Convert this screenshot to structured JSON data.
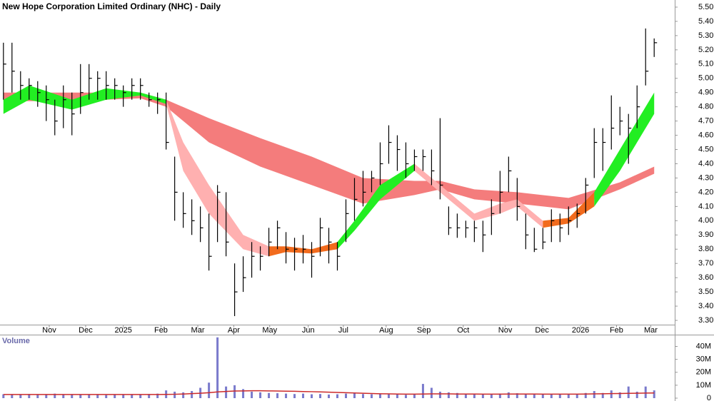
{
  "chart_data": [
    {
      "type": "hlc",
      "title": "New Hope Corporation Limited Ordinary (NHC) - Daily",
      "color": "#000000",
      "xlim": [
        -0.4,
        78.4
      ],
      "xticks": [
        {
          "value": 5.35,
          "label": "Nov"
        },
        {
          "value": 9.6,
          "label": "Dec"
        },
        {
          "value": 14.0,
          "label": "2025"
        },
        {
          "value": 18.4,
          "label": "Feb"
        },
        {
          "value": 22.7,
          "label": "Mar"
        },
        {
          "value": 26.9,
          "label": "Apr"
        },
        {
          "value": 31.1,
          "label": "May"
        },
        {
          "value": 35.6,
          "label": "Jun"
        },
        {
          "value": 39.7,
          "label": "Jul"
        },
        {
          "value": 44.7,
          "label": "Aug"
        },
        {
          "value": 49.1,
          "label": "Sep"
        },
        {
          "value": 53.7,
          "label": "Oct"
        },
        {
          "value": 58.6,
          "label": "Nov"
        },
        {
          "value": 62.9,
          "label": "Dec"
        },
        {
          "value": 67.4,
          "label": "2026"
        },
        {
          "value": 71.6,
          "label": "Feb"
        },
        {
          "value": 75.6,
          "label": "Mar"
        }
      ],
      "ylim": [
        3.27,
        5.55
      ],
      "yticks": [
        {
          "value": 3.3,
          "label": "3.30"
        },
        {
          "value": 3.4,
          "label": "3.40"
        },
        {
          "value": 3.5,
          "label": "3.50"
        },
        {
          "value": 3.6,
          "label": "3.60"
        },
        {
          "value": 3.7,
          "label": "3.70"
        },
        {
          "value": 3.8,
          "label": "3.80"
        },
        {
          "value": 3.9,
          "label": "3.90"
        },
        {
          "value": 4.0,
          "label": "4.00"
        },
        {
          "value": 4.1,
          "label": "4.10"
        },
        {
          "value": 4.2,
          "label": "4.20"
        },
        {
          "value": 4.3,
          "label": "4.30"
        },
        {
          "value": 4.4,
          "label": "4.40"
        },
        {
          "value": 4.5,
          "label": "4.50"
        },
        {
          "value": 4.6,
          "label": "4.60"
        },
        {
          "value": 4.7,
          "label": "4.70"
        },
        {
          "value": 4.8,
          "label": "4.80"
        },
        {
          "value": 4.9,
          "label": "4.90"
        },
        {
          "value": 5.0,
          "label": "5.00"
        },
        {
          "value": 5.1,
          "label": "5.10"
        },
        {
          "value": 5.2,
          "label": "5.20"
        },
        {
          "value": 5.3,
          "label": "5.30"
        },
        {
          "value": 5.4,
          "label": "5.40"
        },
        {
          "value": 5.5,
          "label": "5.50"
        }
      ],
      "high": [
        5.25,
        5.25,
        5.05,
        5.0,
        4.98,
        4.95,
        4.85,
        4.95,
        4.9,
        5.1,
        5.1,
        5.05,
        5.05,
        5.0,
        4.95,
        5.0,
        5.0,
        4.9,
        4.9,
        4.9,
        4.45,
        4.2,
        4.15,
        4.1,
        4.05,
        4.25,
        4.2,
        3.7,
        3.75,
        3.85,
        3.82,
        3.95,
        4.0,
        3.92,
        3.88,
        3.9,
        3.85,
        4.02,
        3.95,
        3.85,
        4.15,
        4.3,
        4.35,
        4.35,
        4.55,
        4.67,
        4.6,
        4.55,
        4.5,
        4.5,
        4.5,
        4.72,
        4.1,
        4.05,
        4.0,
        4.0,
        4.0,
        4.15,
        4.35,
        4.45,
        4.3,
        4.05,
        3.95,
        3.95,
        4.08,
        4.05,
        4.1,
        4.12,
        4.3,
        4.65,
        4.65,
        4.88,
        4.8,
        4.75,
        4.95,
        5.35,
        5.28
      ],
      "low": [
        4.85,
        4.9,
        4.85,
        4.85,
        4.8,
        4.7,
        4.6,
        4.65,
        4.6,
        4.75,
        4.85,
        4.85,
        4.85,
        4.85,
        4.8,
        4.85,
        4.85,
        4.8,
        4.75,
        4.5,
        4.0,
        3.95,
        3.9,
        3.85,
        3.65,
        3.85,
        3.75,
        3.33,
        3.5,
        3.6,
        3.65,
        3.75,
        3.8,
        3.7,
        3.65,
        3.7,
        3.6,
        3.75,
        3.7,
        3.65,
        3.85,
        4.0,
        4.1,
        4.2,
        4.25,
        4.4,
        4.35,
        4.3,
        4.35,
        4.35,
        4.25,
        4.15,
        3.9,
        3.88,
        3.88,
        3.85,
        3.78,
        3.9,
        4.05,
        4.2,
        4.0,
        3.8,
        3.78,
        3.8,
        3.85,
        3.85,
        3.9,
        3.95,
        4.05,
        4.3,
        4.35,
        4.5,
        4.6,
        4.4,
        4.65,
        4.95,
        5.15
      ],
      "close": [
        5.1,
        5.05,
        4.95,
        4.95,
        4.9,
        4.85,
        4.7,
        4.85,
        4.75,
        4.9,
        5.0,
        5.0,
        4.95,
        4.95,
        4.9,
        4.95,
        4.95,
        4.85,
        4.85,
        4.55,
        4.2,
        4.05,
        4.0,
        3.95,
        3.75,
        4.2,
        3.85,
        3.5,
        3.6,
        3.75,
        3.75,
        3.85,
        3.95,
        3.8,
        3.8,
        3.8,
        3.75,
        3.95,
        3.85,
        3.75,
        4.05,
        4.15,
        4.2,
        4.3,
        4.4,
        4.55,
        4.5,
        4.4,
        4.45,
        4.45,
        4.35,
        4.25,
        3.95,
        3.95,
        3.95,
        3.95,
        3.9,
        4.05,
        4.2,
        4.35,
        4.1,
        3.9,
        3.8,
        3.85,
        4.0,
        3.95,
        4.0,
        4.05,
        4.25,
        4.55,
        4.55,
        4.65,
        4.7,
        4.65,
        4.8,
        5.05,
        5.25
      ],
      "bands": [
        {
          "color": "#f47c7c",
          "x": [
            0,
            8,
            16,
            19,
            24,
            30,
            36,
            42,
            48,
            51,
            55,
            60,
            66,
            72,
            76
          ],
          "upper": [
            4.9,
            4.9,
            4.9,
            4.85,
            4.72,
            4.58,
            4.45,
            4.3,
            4.28,
            4.28,
            4.22,
            4.2,
            4.16,
            4.27,
            4.38
          ],
          "lower": [
            4.84,
            4.84,
            4.86,
            4.8,
            4.55,
            4.38,
            4.25,
            4.12,
            4.18,
            4.22,
            4.15,
            4.12,
            4.08,
            4.22,
            4.33
          ]
        },
        {
          "color": "#22ee22",
          "x": [
            0,
            3,
            8,
            12,
            16,
            19
          ],
          "upper": [
            4.85,
            4.95,
            4.85,
            4.93,
            4.9,
            4.85
          ],
          "lower": [
            4.75,
            4.85,
            4.78,
            4.85,
            4.88,
            4.82
          ]
        },
        {
          "color": "#ffb0b0",
          "x": [
            19,
            21,
            24,
            28,
            31
          ],
          "upper": [
            4.85,
            4.55,
            4.25,
            3.9,
            3.82
          ],
          "lower": [
            4.82,
            4.35,
            4.05,
            3.8,
            3.75
          ]
        },
        {
          "color": "#f26b1d",
          "x": [
            31,
            33,
            36,
            39
          ],
          "upper": [
            3.82,
            3.82,
            3.8,
            3.85
          ],
          "lower": [
            3.75,
            3.78,
            3.77,
            3.8
          ]
        },
        {
          "color": "#22ee22",
          "x": [
            39,
            41,
            44,
            48
          ],
          "upper": [
            3.85,
            4.0,
            4.25,
            4.4
          ],
          "lower": [
            3.8,
            3.93,
            4.15,
            4.35
          ]
        },
        {
          "color": "#ffb0b0",
          "x": [
            48,
            51,
            55,
            58,
            60,
            63
          ],
          "upper": [
            4.4,
            4.25,
            4.05,
            4.12,
            4.15,
            4.0
          ],
          "lower": [
            4.35,
            4.2,
            4.0,
            4.05,
            4.1,
            3.95
          ]
        },
        {
          "color": "#f26b1d",
          "x": [
            63,
            66,
            69
          ],
          "upper": [
            4.0,
            4.02,
            4.2
          ],
          "lower": [
            3.95,
            3.98,
            4.1
          ]
        },
        {
          "color": "#22ee22",
          "x": [
            69,
            72,
            74,
            76
          ],
          "upper": [
            4.2,
            4.5,
            4.7,
            4.9
          ],
          "lower": [
            4.1,
            4.35,
            4.55,
            4.75
          ]
        }
      ]
    },
    {
      "type": "bar",
      "title": "Volume",
      "color": "#7a7acc",
      "ylim": [
        0,
        48000000
      ],
      "yticks": [
        0,
        {
          "value": 10000000,
          "label": "10M"
        },
        {
          "value": 20000000,
          "label": "20M"
        },
        {
          "value": 30000000,
          "label": "30M"
        },
        {
          "value": 40000000,
          "label": "40M"
        }
      ],
      "values": [
        3000000,
        2500000,
        2800000,
        3200000,
        2600000,
        3000000,
        3500000,
        2800000,
        2500000,
        2700000,
        3000000,
        2600000,
        2400000,
        2800000,
        2500000,
        2700000,
        3000000,
        3200000,
        3500000,
        6000000,
        5000000,
        4500000,
        5500000,
        8000000,
        12000000,
        47000000,
        9000000,
        10000000,
        7000000,
        5000000,
        4500000,
        4000000,
        3800000,
        3500000,
        3200000,
        3500000,
        3000000,
        3200000,
        2800000,
        3000000,
        3500000,
        3800000,
        3200000,
        3000000,
        3500000,
        3000000,
        2800000,
        2600000,
        3200000,
        11000000,
        8000000,
        5000000,
        4500000,
        4000000,
        3200000,
        3000000,
        2800000,
        3200000,
        3500000,
        4500000,
        3800000,
        3000000,
        3500000,
        3200000,
        2800000,
        3000000,
        3200000,
        3000000,
        4000000,
        5500000,
        4000000,
        6000000,
        4500000,
        9000000,
        5000000,
        9000000,
        6000000
      ],
      "average": {
        "color": "#cc2a2a",
        "values": [
          2800000,
          2800000,
          2800000,
          2800000,
          2800000,
          2800000,
          2800000,
          2800000,
          2800000,
          2800000,
          2800000,
          2800000,
          2800000,
          2800000,
          2800000,
          2800000,
          2800000,
          2800000,
          2800000,
          2900000,
          3000000,
          3200000,
          3500000,
          3800000,
          4200000,
          4800000,
          5200000,
          5500000,
          5600000,
          5700000,
          5700000,
          5600000,
          5500000,
          5400000,
          5300000,
          5100000,
          5000000,
          4800000,
          4600000,
          4400000,
          4200000,
          4000000,
          3800000,
          3600000,
          3400000,
          3300000,
          3200000,
          3100000,
          3100000,
          3200000,
          3300000,
          3300000,
          3300000,
          3200000,
          3200000,
          3200000,
          3100000,
          3100000,
          3100000,
          3200000,
          3200000,
          3200000,
          3200000,
          3100000,
          3100000,
          3100000,
          3100000,
          3100000,
          3200000,
          3300000,
          3400000,
          3500000,
          3600000,
          3700000,
          3800000,
          3900000,
          4000000
        ]
      }
    }
  ]
}
